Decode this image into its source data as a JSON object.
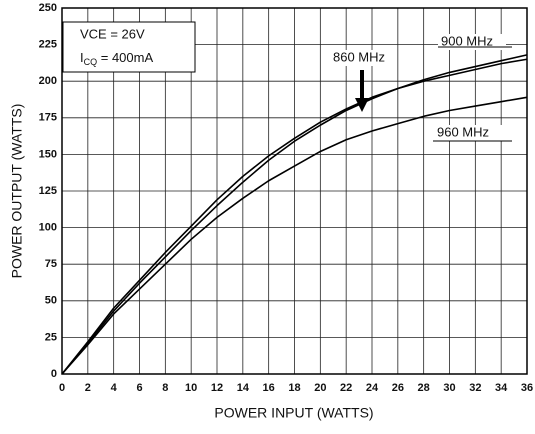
{
  "chart_data": {
    "type": "line",
    "x_label": "POWER INPUT (WATTS)",
    "y_label": "POWER OUTPUT (WATTS)",
    "x": [
      0,
      2,
      4,
      6,
      8,
      10,
      12,
      14,
      16,
      18,
      20,
      22,
      24,
      26,
      28,
      30,
      32,
      34,
      36
    ],
    "series": [
      {
        "name": "900 MHz",
        "color": "#000000",
        "values": [
          0,
          22,
          45,
          64,
          83,
          101,
          119,
          135,
          149,
          161,
          172,
          181,
          189,
          195,
          201,
          206,
          210,
          214,
          218
        ]
      },
      {
        "name": "860 MHz",
        "color": "#000000",
        "values": [
          0,
          21,
          43,
          62,
          80,
          98,
          115,
          131,
          146,
          159,
          170,
          180,
          188,
          195,
          200,
          204,
          208,
          212,
          215
        ]
      },
      {
        "name": "960 MHz",
        "color": "#000000",
        "values": [
          0,
          20,
          41,
          58,
          75,
          92,
          107,
          120,
          132,
          142,
          152,
          160,
          166,
          171,
          176,
          180,
          183,
          186,
          189
        ]
      }
    ],
    "annotations": [
      {
        "text": "VCE  = 26V"
      },
      {
        "text": "I",
        "sub": "CQ",
        "rest": " = 400mA"
      }
    ],
    "xlim": [
      0,
      36
    ],
    "xticks": [
      0,
      2,
      4,
      6,
      8,
      10,
      12,
      14,
      16,
      18,
      20,
      22,
      24,
      26,
      28,
      30,
      32,
      34,
      36
    ],
    "ylim": [
      0,
      250
    ],
    "yticks": [
      0,
      25,
      50,
      75,
      100,
      125,
      150,
      175,
      200,
      225,
      250
    ],
    "grid": true
  }
}
